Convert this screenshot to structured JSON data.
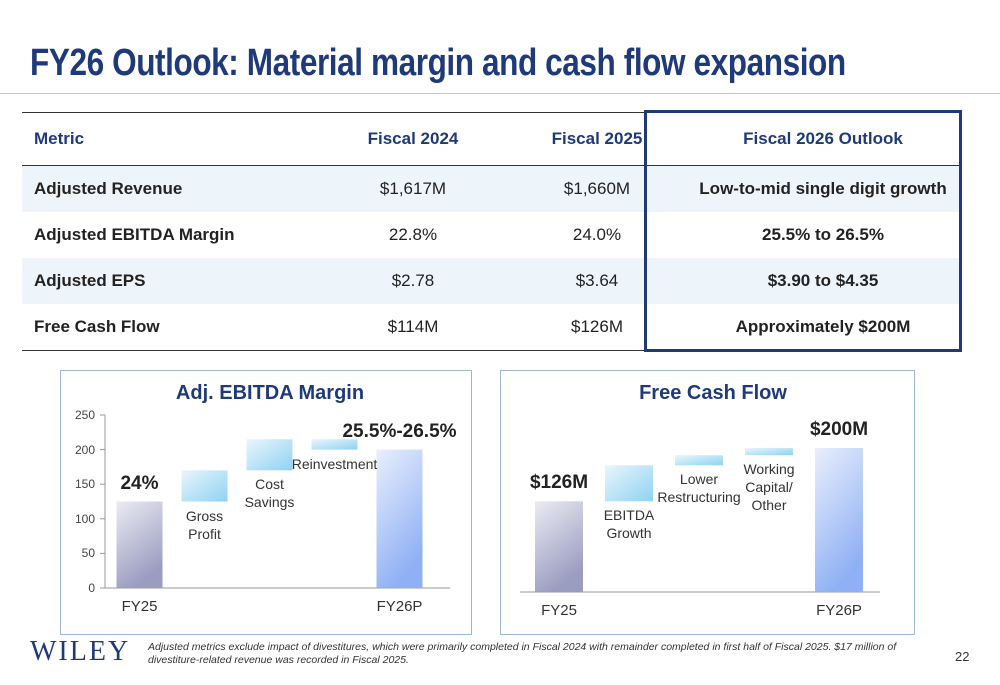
{
  "title": "FY26 Outlook: Material margin and cash flow expansion",
  "table": {
    "header": [
      "Metric",
      "Fiscal 2024",
      "Fiscal 2025",
      "Fiscal 2026 Outlook"
    ],
    "rows": [
      [
        "Adjusted Revenue",
        "$1,617M",
        "$1,660M",
        "Low-to-mid single digit growth"
      ],
      [
        "Adjusted EBITDA Margin",
        "22.8%",
        "24.0%",
        "25.5% to 26.5%"
      ],
      [
        "Adjusted EPS",
        "$2.78",
        "$3.64",
        "$3.90 to $4.35"
      ],
      [
        "Free Cash Flow",
        "$114M",
        "$126M",
        "Approximately $200M"
      ]
    ]
  },
  "chart_data": [
    {
      "type": "waterfall",
      "title": "Adj. EBITDA Margin",
      "categories": [
        "FY25",
        "Gross Profit",
        "Cost Savings",
        "Reinvestment",
        "FY26P"
      ],
      "values": [
        125,
        45,
        45,
        -15,
        200
      ],
      "totals": [
        true,
        false,
        false,
        false,
        true
      ],
      "annotations": [
        "24%",
        null,
        null,
        null,
        "25.5%-26.5%"
      ],
      "colors": [
        "#9a9cc0",
        "#8fd2f2",
        "#8fd2f2",
        "#8fd2f2",
        "#8fb0f4"
      ],
      "ylim": [
        0,
        250
      ],
      "yticks": [
        0,
        50,
        100,
        150,
        200,
        250
      ]
    },
    {
      "type": "waterfall",
      "title": "Free Cash Flow",
      "categories": [
        "FY25",
        "EBITDA Growth",
        "Lower Restructuring",
        "Working Capital/ Other",
        "FY26P"
      ],
      "values": [
        126,
        50,
        14,
        10,
        200
      ],
      "totals": [
        true,
        false,
        false,
        false,
        true
      ],
      "value_labels": [
        "$126M",
        null,
        null,
        null,
        "$200M"
      ],
      "colors": [
        "#9a9cc0",
        "#8fd2f2",
        "#8fd2f2",
        "#8fd2f2",
        "#8fb0f4"
      ]
    }
  ],
  "logo": "WILEY",
  "footnote": "Adjusted metrics exclude impact of divestitures, which were primarily completed in Fiscal 2024 with remainder completed in first half of Fiscal 2025.  $17 million of divestiture-related revenue was recorded in Fiscal 2025.",
  "page_number": "22"
}
